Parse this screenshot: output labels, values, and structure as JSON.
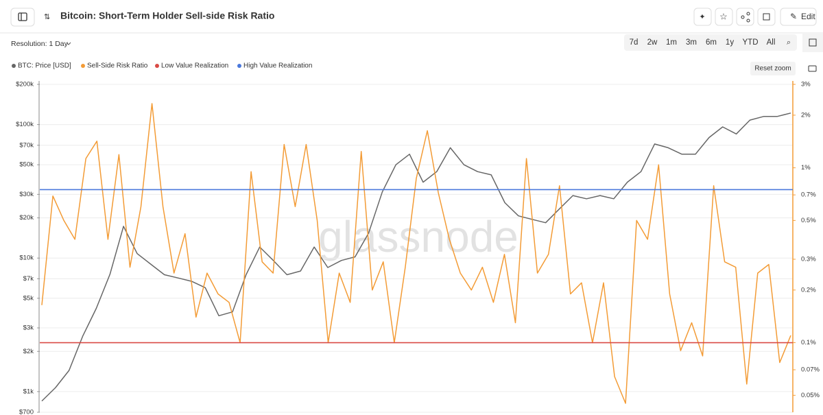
{
  "header": {
    "title": "Bitcoin: Short-Term Holder Sell-side Risk Ratio",
    "edit": "Edit"
  },
  "toolbar": {
    "resolution": "Resolution: 1 Day",
    "ranges": [
      "7d",
      "2w",
      "1m",
      "3m",
      "6m",
      "1y",
      "YTD",
      "All"
    ],
    "reset_zoom": "Reset zoom"
  },
  "watermark": "glassnode",
  "chart_data": {
    "type": "line",
    "log_scale": true,
    "y2_log_scale": true,
    "grid": true,
    "legend": "top-left",
    "ylim": [
      700,
      200000
    ],
    "yticks": [
      {
        "value": 200000,
        "label": "$200k"
      },
      {
        "value": 100000,
        "label": "$100k"
      },
      {
        "value": 70000,
        "label": "$70k"
      },
      {
        "value": 50000,
        "label": "$50k"
      },
      {
        "value": 30000,
        "label": "$30k"
      },
      {
        "value": 20000,
        "label": "$20k"
      },
      {
        "value": 10000,
        "label": "$10k"
      },
      {
        "value": 7000,
        "label": "$7k"
      },
      {
        "value": 5000,
        "label": "$5k"
      },
      {
        "value": 3000,
        "label": "$3k"
      },
      {
        "value": 2000,
        "label": "$2k"
      },
      {
        "value": 1000,
        "label": "$1k"
      },
      {
        "value": 700,
        "label": "$700"
      }
    ],
    "y2lim": [
      0.04,
      3
    ],
    "y2ticks": [
      {
        "value": 3,
        "label": "3%"
      },
      {
        "value": 2,
        "label": "2%"
      },
      {
        "value": 1,
        "label": "1%"
      },
      {
        "value": 0.7,
        "label": "0.7%"
      },
      {
        "value": 0.5,
        "label": "0.5%"
      },
      {
        "value": 0.3,
        "label": "0.3%"
      },
      {
        "value": 0.2,
        "label": "0.2%"
      },
      {
        "value": 0.1,
        "label": "0.1%"
      },
      {
        "value": 0.07,
        "label": "0.07%"
      },
      {
        "value": 0.05,
        "label": "0.05%"
      }
    ],
    "series": [
      {
        "name": "BTC: Price [USD]",
        "color": "#666666",
        "values": [
          850,
          1070,
          1440,
          2600,
          4200,
          7560,
          17300,
          10800,
          9000,
          7500,
          7100,
          6700,
          6000,
          3700,
          3950,
          7500,
          12100,
          9600,
          7500,
          8000,
          12100,
          8500,
          9600,
          10200,
          15400,
          31300,
          50000,
          60000,
          37000,
          44400,
          67000,
          50000,
          44400,
          42000,
          26000,
          20700,
          19500,
          18400,
          23300,
          29400,
          27800,
          29400,
          27800,
          37000,
          44400,
          71500,
          67000,
          60000,
          60000,
          80000,
          96000,
          85000,
          108000,
          115000,
          115000,
          122000
        ]
      },
      {
        "name": "Sell-Side Risk Ratio",
        "color": "#f39b35",
        "axis": "y2",
        "values": [
          0.164,
          0.69,
          0.5,
          0.39,
          1.13,
          1.42,
          0.39,
          1.19,
          0.27,
          0.6,
          2.33,
          0.6,
          0.25,
          0.42,
          0.14,
          0.25,
          0.19,
          0.17,
          0.1,
          0.95,
          0.29,
          0.25,
          1.36,
          0.6,
          1.36,
          0.5,
          0.1,
          0.25,
          0.17,
          1.24,
          0.2,
          0.29,
          0.1,
          0.27,
          0.87,
          1.63,
          0.72,
          0.39,
          0.25,
          0.2,
          0.27,
          0.17,
          0.32,
          0.13,
          1.13,
          0.25,
          0.32,
          0.79,
          0.19,
          0.22,
          0.1,
          0.22,
          0.064,
          0.045,
          0.5,
          0.39,
          1.04,
          0.19,
          0.09,
          0.13,
          0.084,
          0.79,
          0.29,
          0.27,
          0.058,
          0.25,
          0.28,
          0.077,
          0.11
        ]
      },
      {
        "name": "Low Value Realization",
        "color": "#d94a45",
        "axis": "y2",
        "values": [
          0.1
        ]
      },
      {
        "name": "High Value Realization",
        "color": "#4a78dc",
        "axis": "y2",
        "values": [
          0.75
        ]
      }
    ]
  }
}
